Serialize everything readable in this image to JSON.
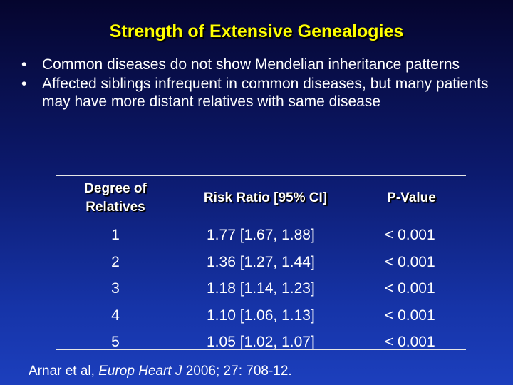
{
  "title": "Strength of Extensive Genealogies",
  "bullets": [
    {
      "marker": "•",
      "text": "Common diseases do not show Mendelian inheritance patterns"
    },
    {
      "marker": "•",
      "text": "Affected siblings infrequent in common diseases, but many patients may have more distant relatives with same disease"
    }
  ],
  "table": {
    "headers": {
      "degree_line1": "Degree of",
      "degree_line2": "Relatives",
      "risk_ratio": "Risk Ratio [95% CI]",
      "p_value": "P-Value"
    },
    "rows": [
      {
        "degree": "1",
        "risk_ratio": "1.77 [1.67, 1.88]",
        "p_value": "< 0.001"
      },
      {
        "degree": "2",
        "risk_ratio": "1.36 [1.27, 1.44]",
        "p_value": "< 0.001"
      },
      {
        "degree": "3",
        "risk_ratio": "1.18 [1.14, 1.23]",
        "p_value": "< 0.001"
      },
      {
        "degree": "4",
        "risk_ratio": "1.10 [1.06, 1.13]",
        "p_value": "< 0.001"
      },
      {
        "degree": "5",
        "risk_ratio": "1.05 [1.02, 1.07]",
        "p_value": "< 0.001"
      }
    ]
  },
  "citation": {
    "authors": "Arnar et al, ",
    "journal": "Europ Heart J",
    "details": " 2006; 27: 708-12."
  },
  "colors": {
    "title": "#ffff00",
    "text": "#ffffff",
    "background_top": "#05052e",
    "background_bottom": "#1c3fbd"
  }
}
